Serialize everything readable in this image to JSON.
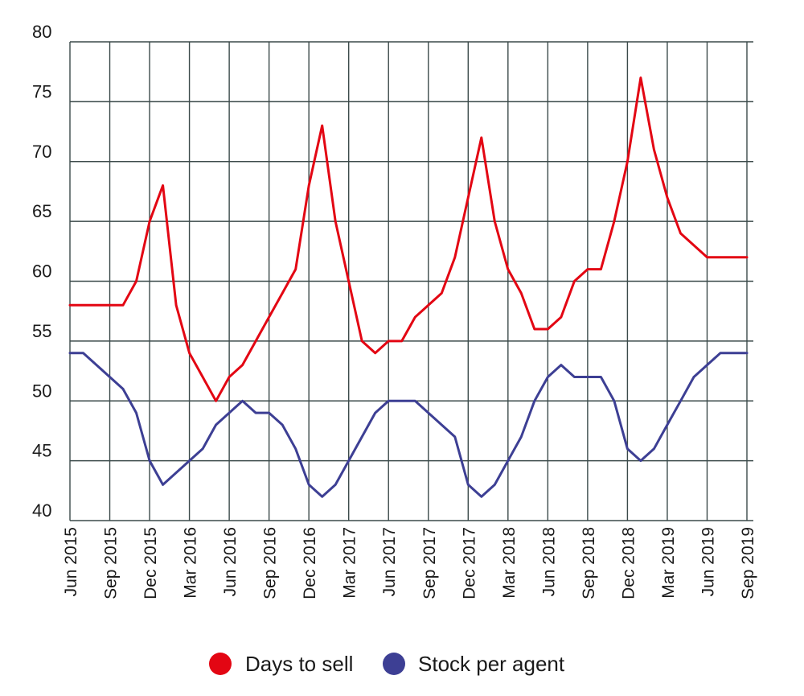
{
  "chart_data": {
    "type": "line",
    "title": "",
    "xlabel": "",
    "ylabel": "",
    "ylim": [
      40,
      80
    ],
    "yticks": [
      40,
      45,
      50,
      55,
      60,
      65,
      70,
      75,
      80
    ],
    "grid": true,
    "legend_position": "bottom-center",
    "x": [
      "Jun 2015",
      "Jul 2015",
      "Aug 2015",
      "Sep 2015",
      "Oct 2015",
      "Nov 2015",
      "Dec 2015",
      "Jan 2016",
      "Feb 2016",
      "Mar 2016",
      "Apr 2016",
      "May 2016",
      "Jun 2016",
      "Jul 2016",
      "Aug 2016",
      "Sep 2016",
      "Oct 2016",
      "Nov 2016",
      "Dec 2016",
      "Jan 2017",
      "Feb 2017",
      "Mar 2017",
      "Apr 2017",
      "May 2017",
      "Jun 2017",
      "Jul 2017",
      "Aug 2017",
      "Sep 2017",
      "Oct 2017",
      "Nov 2017",
      "Dec 2017",
      "Jan 2018",
      "Feb 2018",
      "Mar 2018",
      "Apr 2018",
      "May 2018",
      "Jun 2018",
      "Jul 2018",
      "Aug 2018",
      "Sep 2018",
      "Oct 2018",
      "Nov 2018",
      "Dec 2018",
      "Jan 2019",
      "Feb 2019",
      "Mar 2019",
      "Apr 2019",
      "May 2019",
      "Jun 2019",
      "Jul 2019",
      "Aug 2019",
      "Sep 2019"
    ],
    "xtick_labels": [
      "Jun 2015",
      "Sep 2015",
      "Dec 2015",
      "Mar 2016",
      "Jun 2016",
      "Sep 2016",
      "Dec 2016",
      "Mar 2017",
      "Jun 2017",
      "Sep 2017",
      "Dec 2017",
      "Mar 2018",
      "Jun 2018",
      "Sep 2018",
      "Dec 2018",
      "Mar 2019",
      "Jun 2019",
      "Sep 2019"
    ],
    "series": [
      {
        "name": "Days to sell",
        "color": "#e30613",
        "values": [
          58,
          58,
          58,
          58,
          58,
          60,
          65,
          68,
          58,
          54,
          52,
          50,
          52,
          53,
          55,
          57,
          59,
          61,
          68,
          73,
          65,
          60,
          55,
          54,
          55,
          55,
          57,
          58,
          59,
          62,
          67,
          72,
          65,
          61,
          59,
          56,
          56,
          57,
          60,
          61,
          61,
          65,
          70,
          77,
          71,
          67,
          64,
          63,
          62,
          62,
          62,
          62
        ]
      },
      {
        "name": "Stock per agent",
        "color": "#3d3f94",
        "values": [
          54,
          54,
          53,
          52,
          51,
          49,
          45,
          43,
          44,
          45,
          46,
          48,
          49,
          50,
          49,
          49,
          48,
          46,
          43,
          42,
          43,
          45,
          47,
          49,
          50,
          50,
          50,
          49,
          48,
          47,
          43,
          42,
          43,
          45,
          47,
          50,
          52,
          53,
          52,
          52,
          52,
          50,
          46,
          45,
          46,
          48,
          50,
          52,
          53,
          54,
          54,
          54
        ]
      }
    ]
  }
}
